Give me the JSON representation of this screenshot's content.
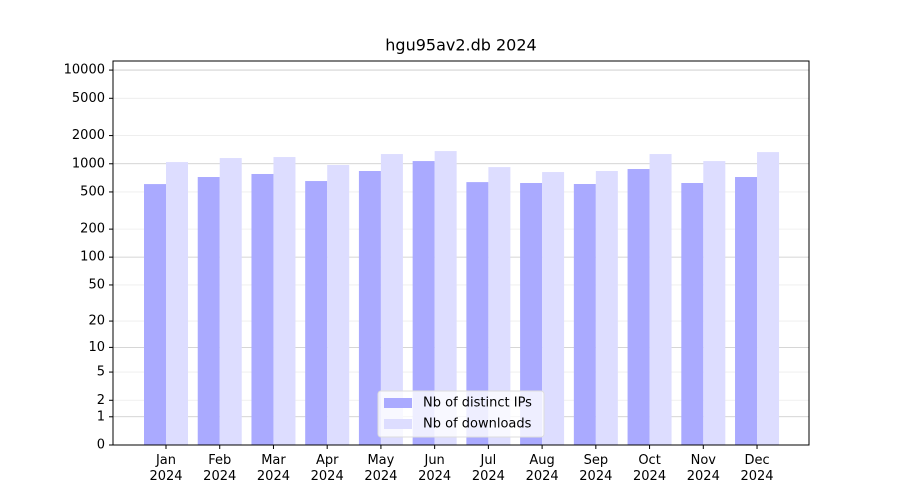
{
  "chart_data": {
    "type": "bar",
    "title": "hgu95av2.db 2024",
    "categories": [
      "Jan\n2024",
      "Feb\n2024",
      "Mar\n2024",
      "Apr\n2024",
      "May\n2024",
      "Jun\n2024",
      "Jul\n2024",
      "Aug\n2024",
      "Sep\n2024",
      "Oct\n2024",
      "Nov\n2024",
      "Dec\n2024"
    ],
    "series": [
      {
        "name": "Nb of distinct IPs",
        "color": "#aaaaff",
        "values": [
          607,
          722,
          778,
          654,
          837,
          1069,
          637,
          623,
          608,
          879,
          623,
          722
        ]
      },
      {
        "name": "Nb of downloads",
        "color": "#ddddff",
        "values": [
          1043,
          1151,
          1180,
          970,
          1270,
          1367,
          922,
          816,
          837,
          1270,
          1069,
          1333
        ]
      }
    ],
    "yscale": "symlog",
    "ylim": [
      0,
      12500
    ],
    "yticks": [
      0,
      1,
      2,
      5,
      10,
      20,
      50,
      100,
      200,
      500,
      1000,
      2000,
      5000,
      10000
    ],
    "grid": true,
    "legend": "lower center"
  }
}
